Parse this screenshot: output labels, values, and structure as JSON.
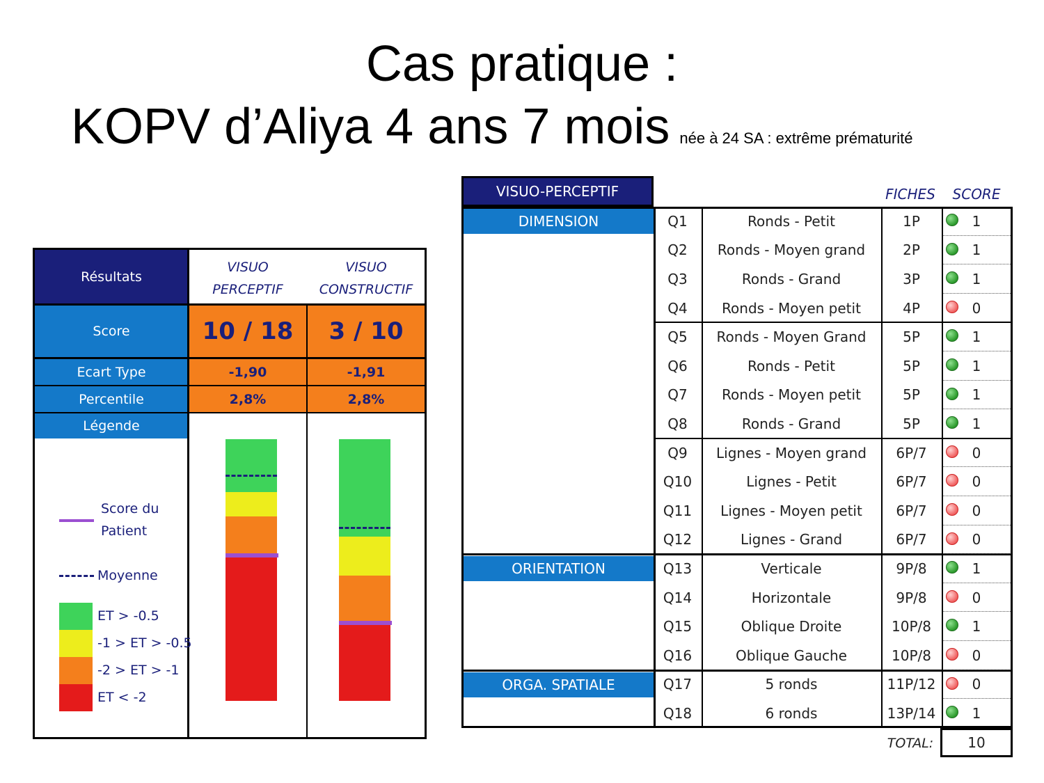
{
  "title": {
    "line1": "Cas pratique :",
    "line2": "KOPV d’Aliya 4 ans 7 mois",
    "subtitle": "née à 24 SA : extrême prématurité"
  },
  "results": {
    "header": "Résultats",
    "col1_line1": "VISUO",
    "col1_line2": "PERCEPTIF",
    "col2_line1": "VISUO",
    "col2_line2": "CONSTRUCTIF",
    "score_label": "Score",
    "score_vp": "10 / 18",
    "score_vc": "3 / 10",
    "ecart_label": "Ecart Type",
    "ecart_vp": "-1,90",
    "ecart_vc": "-1,91",
    "percentile_label": "Percentile",
    "percentile_vp": "2,8%",
    "percentile_vc": "2,8%",
    "legende_label": "Légende",
    "legend": {
      "patient_line1": "Score du",
      "patient_line2": "Patient",
      "moyenne": "Moyenne",
      "green": "ET > -0.5",
      "yellow": "-1 > ET > -0.5",
      "orange": "-2 > ET > -1",
      "red": "ET < -2"
    },
    "colors": {
      "green": "#3ed35a",
      "yellow": "#eded1c",
      "orange": "#f47f1c",
      "red": "#e41b1b",
      "patient": "#9b4fd1",
      "moyenne": "#1a1f7a"
    }
  },
  "table": {
    "section_title": "VISUO-PERCEPTIF",
    "fiches_header": "FICHES",
    "score_header": "SCORE",
    "groups": [
      {
        "label": "DIMENSION",
        "rows": 12
      },
      {
        "label": "ORIENTATION",
        "rows": 4
      },
      {
        "label": "ORGA. SPATIALE",
        "rows": 2
      }
    ],
    "rows": [
      {
        "q": "Q1",
        "item": "Ronds - Petit",
        "fiche": "1P",
        "status": "green",
        "score": "1"
      },
      {
        "q": "Q2",
        "item": "Ronds - Moyen grand",
        "fiche": "2P",
        "status": "green",
        "score": "1"
      },
      {
        "q": "Q3",
        "item": "Ronds - Grand",
        "fiche": "3P",
        "status": "green",
        "score": "1"
      },
      {
        "q": "Q4",
        "item": "Ronds - Moyen petit",
        "fiche": "4P",
        "status": "red",
        "score": "0"
      },
      {
        "q": "Q5",
        "item": "Ronds - Moyen Grand",
        "fiche": "5P",
        "status": "green",
        "score": "1"
      },
      {
        "q": "Q6",
        "item": "Ronds - Petit",
        "fiche": "5P",
        "status": "green",
        "score": "1"
      },
      {
        "q": "Q7",
        "item": "Ronds - Moyen petit",
        "fiche": "5P",
        "status": "green",
        "score": "1"
      },
      {
        "q": "Q8",
        "item": "Ronds - Grand",
        "fiche": "5P",
        "status": "green",
        "score": "1"
      },
      {
        "q": "Q9",
        "item": "Lignes - Moyen grand",
        "fiche": "6P/7",
        "status": "red",
        "score": "0"
      },
      {
        "q": "Q10",
        "item": "Lignes - Petit",
        "fiche": "6P/7",
        "status": "red",
        "score": "0"
      },
      {
        "q": "Q11",
        "item": "Lignes - Moyen petit",
        "fiche": "6P/7",
        "status": "red",
        "score": "0"
      },
      {
        "q": "Q12",
        "item": "Lignes - Grand",
        "fiche": "6P/7",
        "status": "red",
        "score": "0"
      },
      {
        "q": "Q13",
        "item": "Verticale",
        "fiche": "9P/8",
        "status": "green",
        "score": "1"
      },
      {
        "q": "Q14",
        "item": "Horizontale",
        "fiche": "9P/8",
        "status": "red",
        "score": "0"
      },
      {
        "q": "Q15",
        "item": "Oblique Droite",
        "fiche": "10P/8",
        "status": "green",
        "score": "1"
      },
      {
        "q": "Q16",
        "item": "Oblique Gauche",
        "fiche": "10P/8",
        "status": "red",
        "score": "0"
      },
      {
        "q": "Q17",
        "item": "5 ronds",
        "fiche": "11P/12",
        "status": "red",
        "score": "0"
      },
      {
        "q": "Q18",
        "item": "6 ronds",
        "fiche": "13P/14",
        "status": "green",
        "score": "1"
      }
    ],
    "total_label": "TOTAL:",
    "total_value": "10"
  }
}
